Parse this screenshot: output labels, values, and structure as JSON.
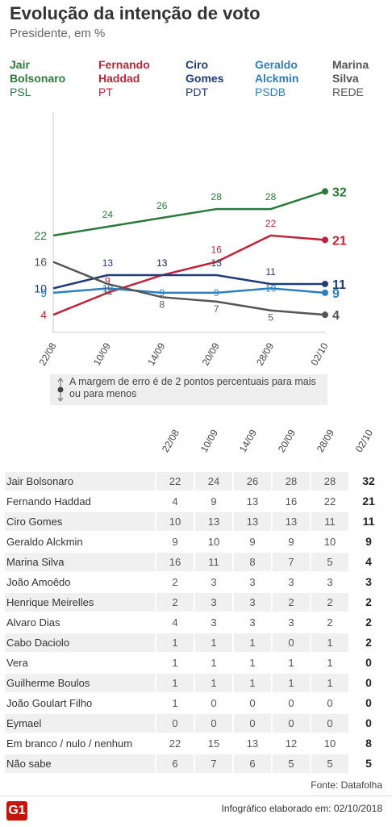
{
  "chart_data": {
    "type": "line",
    "title": "Evolução da intenção de voto",
    "subtitle": "Presidente, em %",
    "categories": [
      "22/08",
      "10/09",
      "14/09",
      "20/09",
      "28/09",
      "02/10"
    ],
    "series": [
      {
        "name": "Jair Bolsonaro",
        "party": "PSL",
        "color": "#2b7a3b",
        "values": [
          22,
          24,
          26,
          28,
          28,
          32
        ]
      },
      {
        "name": "Fernando Haddad",
        "party": "PT",
        "color": "#c0243a",
        "values": [
          4,
          9,
          13,
          16,
          22,
          21
        ]
      },
      {
        "name": "Ciro Gomes",
        "party": "PDT",
        "color": "#1f3b7b",
        "values": [
          10,
          13,
          13,
          13,
          11,
          11
        ]
      },
      {
        "name": "Geraldo Alckmin",
        "party": "PSDB",
        "color": "#2b7fc3",
        "values": [
          9,
          10,
          9,
          9,
          10,
          9
        ]
      },
      {
        "name": "Marina Silva",
        "party": "REDE",
        "color": "#555555",
        "values": [
          16,
          11,
          8,
          7,
          5,
          4
        ]
      }
    ],
    "ylim": [
      0,
      50
    ],
    "note": "A margem de erro é de 2 pontos percentuais para mais ou para menos"
  },
  "table": {
    "columns": [
      "22/08",
      "10/09",
      "14/09",
      "20/09",
      "28/09",
      "02/10"
    ],
    "rows": [
      {
        "name": "Jair Bolsonaro",
        "values": [
          22,
          24,
          26,
          28,
          28,
          32
        ]
      },
      {
        "name": "Fernando Haddad",
        "values": [
          4,
          9,
          13,
          16,
          22,
          21
        ]
      },
      {
        "name": "Ciro Gomes",
        "values": [
          10,
          13,
          13,
          13,
          11,
          11
        ]
      },
      {
        "name": "Geraldo Alckmin",
        "values": [
          9,
          10,
          9,
          9,
          10,
          9
        ]
      },
      {
        "name": "Marina Silva",
        "values": [
          16,
          11,
          8,
          7,
          5,
          4
        ]
      },
      {
        "name": "João Amoêdo",
        "values": [
          2,
          3,
          3,
          3,
          3,
          3
        ]
      },
      {
        "name": "Henrique Meirelles",
        "values": [
          2,
          3,
          3,
          2,
          2,
          2
        ]
      },
      {
        "name": "Alvaro Dias",
        "values": [
          4,
          3,
          3,
          3,
          2,
          2
        ]
      },
      {
        "name": "Cabo Daciolo",
        "values": [
          1,
          1,
          1,
          0,
          1,
          2
        ]
      },
      {
        "name": "Vera",
        "values": [
          1,
          1,
          1,
          1,
          1,
          0
        ]
      },
      {
        "name": "Guilherme Boulos",
        "values": [
          1,
          1,
          1,
          1,
          1,
          0
        ]
      },
      {
        "name": "João Goulart Filho",
        "values": [
          1,
          0,
          0,
          0,
          0,
          0
        ]
      },
      {
        "name": "Eymael",
        "values": [
          0,
          0,
          0,
          0,
          0,
          0
        ]
      },
      {
        "name": "Em branco / nulo / nenhum",
        "values": [
          22,
          15,
          13,
          12,
          10,
          8
        ]
      },
      {
        "name": "Não sabe",
        "values": [
          6,
          7,
          6,
          5,
          5,
          5
        ]
      }
    ]
  },
  "source": "Fonte: Datafolha",
  "logo": "G1",
  "made": "Infográfico elaborado em: 02/10/2018"
}
